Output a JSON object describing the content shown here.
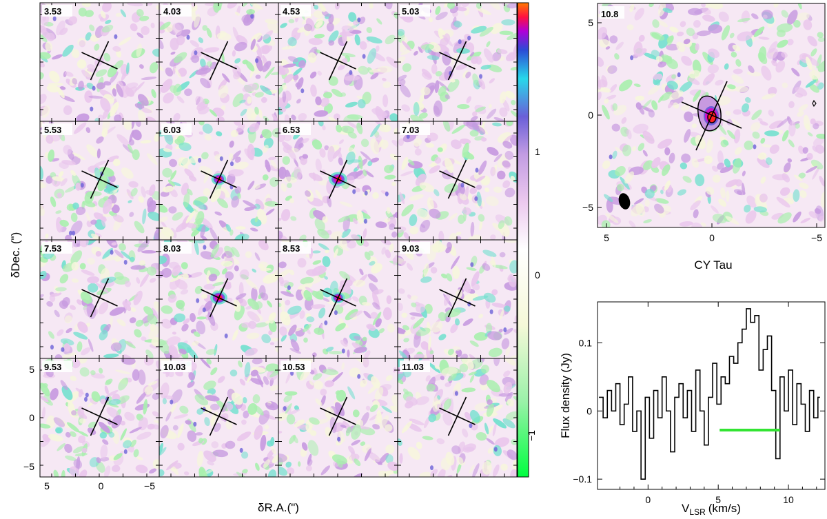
{
  "figure": {
    "ylabel": "δDec. (\")",
    "xlabel": "δR.A.(\")",
    "source_name": "CY Tau",
    "colors": {
      "background": "#f6e8f4",
      "pink": "#e9c6ec",
      "mauve": "#c79ae0",
      "blue": "#6d62d8",
      "teal": "#73e0cf",
      "green": "#a9efae",
      "cream": "#f6f6dc",
      "peak_red": "#ff2020",
      "peak_magenta": "#d20fc8",
      "spectrum_bar": "#33e433"
    }
  },
  "channel_maps": {
    "velocities": [
      "3.53",
      "4.03",
      "4.53",
      "5.03",
      "5.53",
      "6.03",
      "6.53",
      "7.03",
      "7.53",
      "8.03",
      "8.53",
      "9.03",
      "9.53",
      "10.03",
      "10.53",
      "11.03"
    ],
    "emission_strength": [
      0,
      0,
      0,
      0,
      0,
      0.6,
      0.9,
      0,
      0,
      0.8,
      0.5,
      0,
      0,
      0,
      0,
      0
    ],
    "axis_ticks": [
      "5",
      "0",
      "−5"
    ],
    "colorbar_ticks": [
      "1",
      "0",
      "−1"
    ]
  },
  "moment_map": {
    "label": "10.8",
    "ticks": [
      "5",
      "0",
      "−5"
    ]
  },
  "chart_data": {
    "type": "line",
    "title": "",
    "xlabel": "V",
    "xlabel_sub": "LSR",
    "xlabel_unit": "(km/s)",
    "ylabel": "Flux density (Jy)",
    "xlim": [
      -3.6,
      12.6
    ],
    "ylim": [
      -0.115,
      0.16
    ],
    "xticks": [
      0,
      5,
      10
    ],
    "yticks": [
      -0.1,
      0,
      0.1
    ],
    "xtick_labels": [
      "0",
      "5",
      "10"
    ],
    "ytick_labels": [
      "−0.1",
      "0",
      "0.1"
    ],
    "green_bar": {
      "x_start": 5.1,
      "x_end": 9.4,
      "y": -0.028
    },
    "series": [
      {
        "values_x": [
          -3.5,
          -3.2,
          -2.9,
          -2.6,
          -2.3,
          -2.0,
          -1.7,
          -1.4,
          -1.1,
          -0.8,
          -0.5,
          -0.2,
          0.1,
          0.4,
          0.7,
          1.0,
          1.3,
          1.6,
          1.9,
          2.2,
          2.5,
          2.8,
          3.1,
          3.4,
          3.7,
          4.0,
          4.3,
          4.6,
          4.9,
          5.2,
          5.5,
          5.8,
          6.1,
          6.4,
          6.7,
          7.0,
          7.3,
          7.6,
          7.9,
          8.2,
          8.5,
          8.8,
          9.1,
          9.4,
          9.7,
          10.0,
          10.3,
          10.6,
          10.9,
          11.2,
          11.5,
          11.8,
          12.1
        ],
        "values_y": [
          0.02,
          -0.01,
          0.03,
          0.0,
          0.04,
          -0.02,
          0.01,
          0.05,
          -0.03,
          0.0,
          -0.1,
          0.02,
          -0.04,
          0.03,
          -0.01,
          0.05,
          0.0,
          -0.06,
          0.02,
          0.04,
          -0.01,
          0.03,
          -0.03,
          0.06,
          0.0,
          -0.05,
          0.02,
          0.07,
          0.01,
          0.05,
          0.04,
          0.08,
          0.07,
          0.1,
          0.12,
          0.15,
          0.13,
          0.14,
          0.06,
          0.09,
          0.11,
          0.03,
          -0.07,
          0.05,
          0.0,
          0.06,
          -0.02,
          0.04,
          0.01,
          -0.03,
          0.03,
          -0.01,
          0.02
        ]
      }
    ]
  }
}
